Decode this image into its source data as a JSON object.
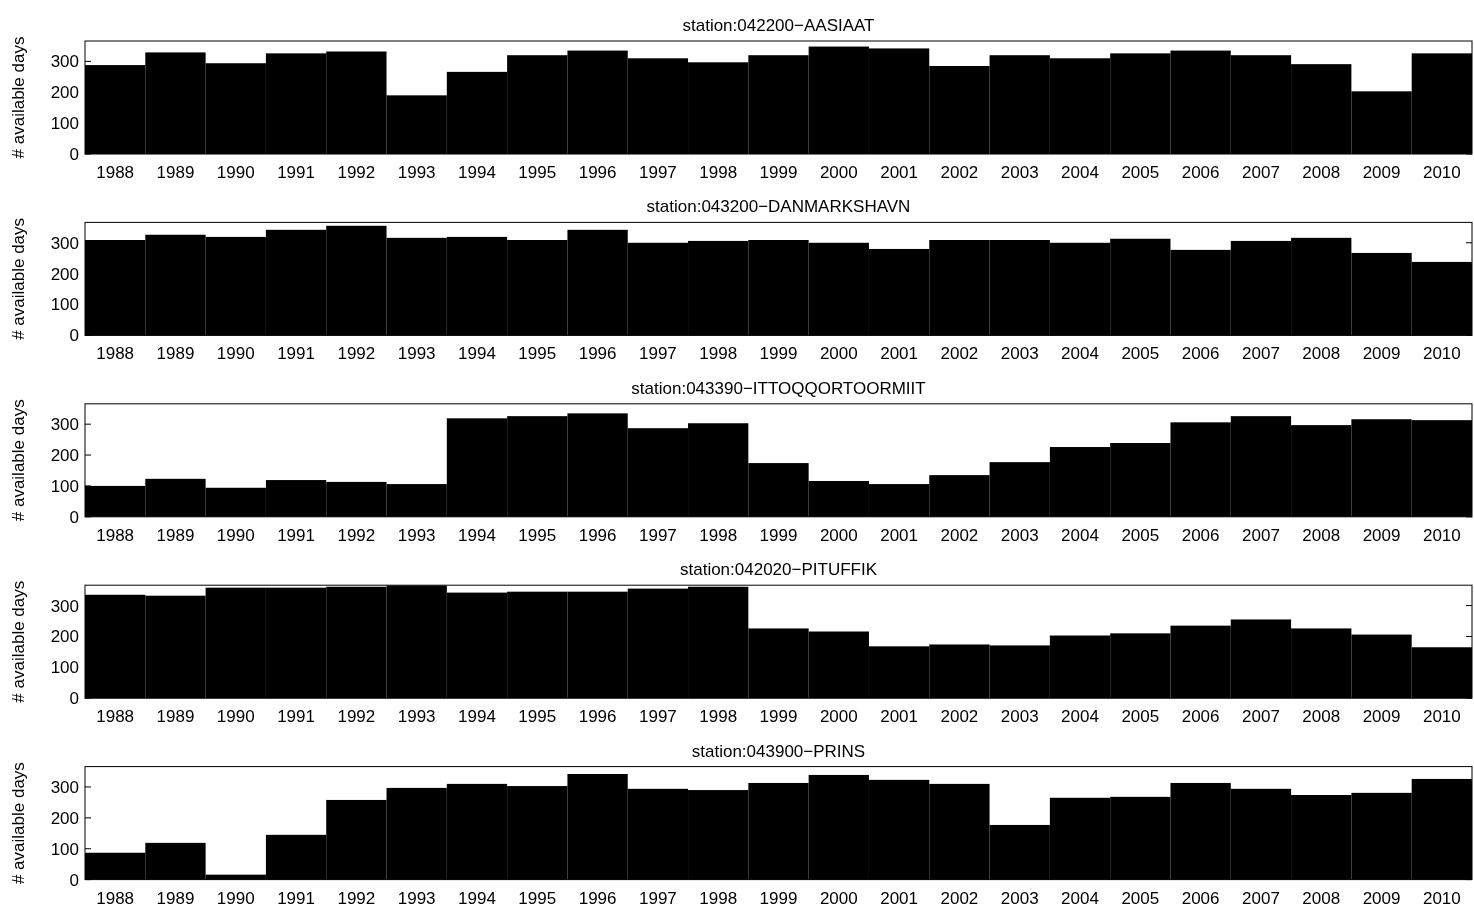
{
  "chart_data": [
    {
      "type": "bar",
      "title": "station:042200−AASIAAT",
      "ylabel": "# available days",
      "categories": [
        "1988",
        "1989",
        "1990",
        "1991",
        "1992",
        "1993",
        "1994",
        "1995",
        "1996",
        "1997",
        "1998",
        "1999",
        "2000",
        "2001",
        "2002",
        "2003",
        "2004",
        "2005",
        "2006",
        "2007",
        "2008",
        "2009",
        "2010"
      ],
      "values": [
        288,
        329,
        294,
        326,
        332,
        190,
        266,
        320,
        335,
        310,
        297,
        320,
        348,
        342,
        285,
        320,
        310,
        326,
        335,
        320,
        291,
        203,
        326
      ],
      "color": "#000000",
      "ylim": [
        0,
        366
      ],
      "yticks": [
        0,
        100,
        200,
        300
      ]
    },
    {
      "type": "bar",
      "title": "station:043200−DANMARKSHAVN",
      "ylabel": "# available days",
      "categories": [
        "1988",
        "1989",
        "1990",
        "1991",
        "1992",
        "1993",
        "1994",
        "1995",
        "1996",
        "1997",
        "1998",
        "1999",
        "2000",
        "2001",
        "2002",
        "2003",
        "2004",
        "2005",
        "2006",
        "2007",
        "2008",
        "2009",
        "2010"
      ],
      "values": [
        309,
        326,
        319,
        342,
        355,
        316,
        319,
        309,
        342,
        300,
        306,
        309,
        300,
        280,
        309,
        309,
        300,
        313,
        277,
        306,
        316,
        267,
        238
      ],
      "color": "#000000",
      "ylim": [
        0,
        366
      ],
      "yticks": [
        0,
        100,
        200,
        300
      ]
    },
    {
      "type": "bar",
      "title": "station:043390−ITTOQQORTOORMIIT",
      "ylabel": "# available days",
      "categories": [
        "1988",
        "1989",
        "1990",
        "1991",
        "1992",
        "1993",
        "1994",
        "1995",
        "1996",
        "1997",
        "1998",
        "1999",
        "2000",
        "2001",
        "2002",
        "2003",
        "2004",
        "2005",
        "2006",
        "2007",
        "2008",
        "2009",
        "2010"
      ],
      "values": [
        100,
        123,
        94,
        119,
        113,
        106,
        319,
        326,
        335,
        287,
        303,
        174,
        116,
        106,
        135,
        177,
        226,
        239,
        306,
        326,
        297,
        316,
        313
      ],
      "color": "#000000",
      "ylim": [
        0,
        366
      ],
      "yticks": [
        0,
        100,
        200,
        300
      ]
    },
    {
      "type": "bar",
      "title": "station:042020−PITUFFIK",
      "ylabel": "# available days",
      "categories": [
        "1988",
        "1989",
        "1990",
        "1991",
        "1992",
        "1993",
        "1994",
        "1995",
        "1996",
        "1997",
        "1998",
        "1999",
        "2000",
        "2001",
        "2002",
        "2003",
        "2004",
        "2005",
        "2006",
        "2007",
        "2008",
        "2009",
        "2010"
      ],
      "values": [
        335,
        332,
        358,
        358,
        361,
        365,
        342,
        345,
        345,
        355,
        361,
        226,
        216,
        168,
        174,
        171,
        203,
        210,
        235,
        255,
        226,
        206,
        165
      ],
      "color": "#000000",
      "ylim": [
        0,
        366
      ],
      "yticks": [
        0,
        100,
        200,
        300
      ]
    },
    {
      "type": "bar",
      "title": "station:043900−PRINS",
      "ylabel": "# available days",
      "categories": [
        "1988",
        "1989",
        "1990",
        "1991",
        "1992",
        "1993",
        "1994",
        "1995",
        "1996",
        "1997",
        "1998",
        "1999",
        "2000",
        "2001",
        "2002",
        "2003",
        "2004",
        "2005",
        "2006",
        "2007",
        "2008",
        "2009",
        "2010"
      ],
      "values": [
        87,
        119,
        16,
        145,
        258,
        297,
        310,
        303,
        342,
        294,
        290,
        313,
        339,
        323,
        310,
        177,
        265,
        268,
        313,
        294,
        274,
        281,
        326
      ],
      "color": "#000000",
      "ylim": [
        0,
        366
      ],
      "yticks": [
        0,
        100,
        200,
        300
      ]
    }
  ]
}
